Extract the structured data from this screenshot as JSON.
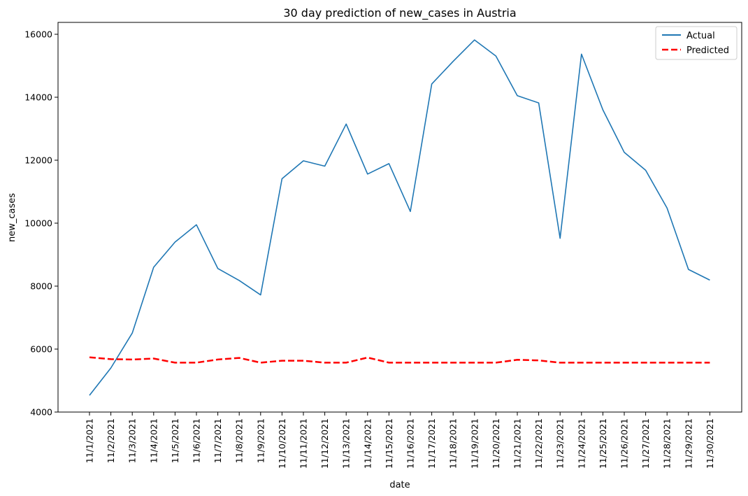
{
  "chart_data": {
    "type": "line",
    "title": "30 day prediction of new_cases in Austria",
    "xlabel": "date",
    "ylabel": "new_cases",
    "ylim": [
      4000,
      16000
    ],
    "yticks": [
      4000,
      6000,
      8000,
      10000,
      12000,
      14000,
      16000
    ],
    "categories": [
      "11/1/2021",
      "11/2/2021",
      "11/3/2021",
      "11/4/2021",
      "11/5/2021",
      "11/6/2021",
      "11/7/2021",
      "11/8/2021",
      "11/9/2021",
      "11/10/2021",
      "11/11/2021",
      "11/12/2021",
      "11/13/2021",
      "11/14/2021",
      "11/15/2021",
      "11/16/2021",
      "11/17/2021",
      "11/18/2021",
      "11/19/2021",
      "11/20/2021",
      "11/21/2021",
      "11/22/2021",
      "11/23/2021",
      "11/24/2021",
      "11/25/2021",
      "11/26/2021",
      "11/27/2021",
      "11/28/2021",
      "11/29/2021",
      "11/30/2021"
    ],
    "series": [
      {
        "name": "Actual",
        "color": "#1f77b4",
        "style": "solid",
        "values": [
          4530,
          5400,
          6510,
          8600,
          9400,
          9950,
          8560,
          8180,
          7720,
          11410,
          11980,
          11810,
          13150,
          11560,
          11890,
          10370,
          14420,
          15140,
          15820,
          15310,
          14050,
          13820,
          9520,
          15370,
          13600,
          12250,
          11680,
          10480,
          8530,
          8190
        ]
      },
      {
        "name": "Predicted",
        "color": "#ff0000",
        "style": "dashed",
        "values": [
          5740,
          5680,
          5670,
          5700,
          5570,
          5570,
          5670,
          5720,
          5570,
          5630,
          5630,
          5570,
          5570,
          5730,
          5570,
          5570,
          5570,
          5570,
          5570,
          5570,
          5660,
          5640,
          5570,
          5570,
          5570,
          5570,
          5570,
          5570,
          5570,
          5570
        ]
      }
    ],
    "legend_position": "top-right",
    "grid": false
  }
}
